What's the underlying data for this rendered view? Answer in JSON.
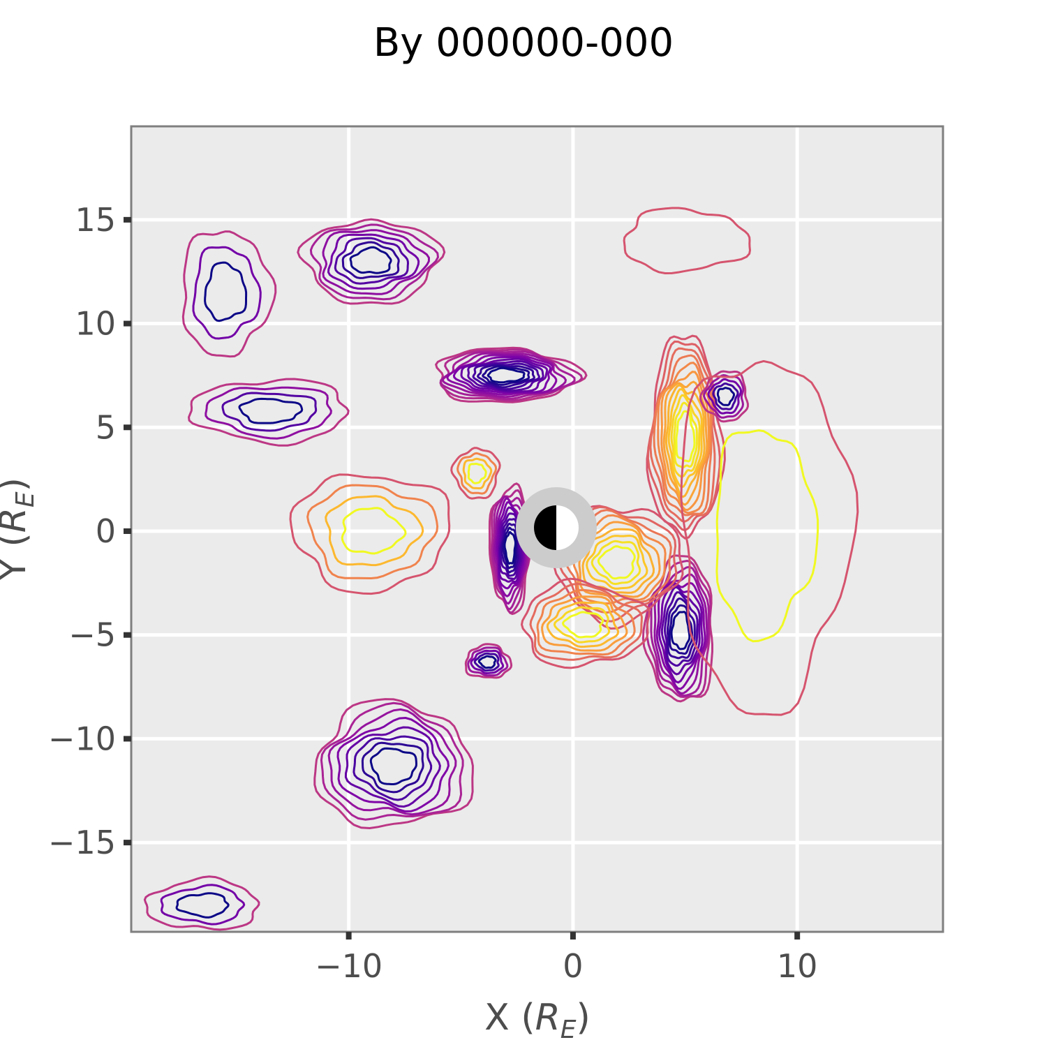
{
  "chart_data": {
    "type": "contour",
    "title": "By 000000-000",
    "xlabel_main": "X (",
    "xlabel_R": "R",
    "xlabel_sub": "E",
    "xlabel_end": ")",
    "ylabel_main": "Y (",
    "ylabel_R": "R",
    "ylabel_sub": "E",
    "ylabel_end": ")",
    "xlim": [
      -19.7,
      16.5
    ],
    "ylim": [
      -19.3,
      19.5
    ],
    "xticks": [
      -10,
      0,
      10
    ],
    "xtick_labels": [
      "−10",
      "0",
      "10"
    ],
    "yticks": [
      -15,
      -10,
      -5,
      0,
      5,
      10,
      15
    ],
    "ytick_labels": [
      "−15",
      "−10",
      "−5",
      "0",
      "5",
      "10",
      "15"
    ],
    "grid": true,
    "colormap": "plasma",
    "colors": {
      "panel_background": "#ebebeb",
      "grid": "#ffffff",
      "frame": "#7f7f7f",
      "tick_text": "#4d4d4d",
      "earth_ring": "#cccccc",
      "earth_night": "#000000",
      "earth_day": "#ffffff"
    },
    "features": [
      {
        "name": "negative-lobe-upper-left",
        "polarity": "min",
        "center": [
          -9.0,
          13.0
        ],
        "radii": [
          3.0,
          2.0
        ],
        "levels": 7
      },
      {
        "name": "negative-lobe-upper-far-left",
        "polarity": "min",
        "center": [
          -15.5,
          11.5
        ],
        "radii": [
          2.0,
          3.0
        ],
        "levels": 3
      },
      {
        "name": "negative-lobe-lower-left",
        "polarity": "min",
        "center": [
          -8.0,
          -11.3
        ],
        "radii": [
          3.5,
          3.0
        ],
        "levels": 8
      },
      {
        "name": "negative-lobe-lower-far-left",
        "polarity": "min",
        "center": [
          -16.5,
          -18.0
        ],
        "radii": [
          2.5,
          1.2
        ],
        "levels": 3
      },
      {
        "name": "negative-band-left-mid",
        "polarity": "min",
        "center": [
          -13.5,
          5.8
        ],
        "radii": [
          3.5,
          1.5
        ],
        "levels": 4
      },
      {
        "name": "positive-plateau-left",
        "polarity": "max",
        "center": [
          -9.0,
          0.0
        ],
        "radii": [
          3.5,
          2.8
        ],
        "levels": 4
      },
      {
        "name": "negative-arc-upper",
        "polarity": "min",
        "center": [
          -3.0,
          7.5
        ],
        "radii": [
          3.2,
          1.3
        ],
        "levels": 12
      },
      {
        "name": "positive-band-right",
        "polarity": "max",
        "center": [
          5.0,
          4.5
        ],
        "radii": [
          1.6,
          4.8
        ],
        "levels": 12
      },
      {
        "name": "negative-arc-lower-right",
        "polarity": "min",
        "center": [
          4.8,
          -4.8
        ],
        "radii": [
          1.5,
          3.5
        ],
        "levels": 11
      },
      {
        "name": "negative-arc-inner-left",
        "polarity": "min",
        "center": [
          -2.8,
          -0.8
        ],
        "radii": [
          0.9,
          3.0
        ],
        "levels": 12
      },
      {
        "name": "positive-ring-inner",
        "polarity": "max",
        "center": [
          2.0,
          -1.5
        ],
        "radii": [
          2.8,
          2.8
        ],
        "levels": 9
      },
      {
        "name": "positive-blob-lower",
        "polarity": "max",
        "center": [
          0.5,
          -4.5
        ],
        "radii": [
          2.8,
          2.0
        ],
        "levels": 7
      },
      {
        "name": "negative-small-lower-left",
        "polarity": "min",
        "center": [
          -3.8,
          -6.3
        ],
        "radii": [
          1.0,
          0.8
        ],
        "levels": 5
      },
      {
        "name": "negative-small-upper-right",
        "polarity": "min",
        "center": [
          6.8,
          6.5
        ],
        "radii": [
          1.0,
          1.2
        ],
        "levels": 5
      },
      {
        "name": "positive-small-left",
        "polarity": "max",
        "center": [
          -4.3,
          2.8
        ],
        "radii": [
          1.0,
          1.2
        ],
        "levels": 4
      },
      {
        "name": "outer-envelope-right",
        "polarity": "max",
        "center": [
          8.5,
          0.0
        ],
        "radii": [
          3.8,
          8.5
        ],
        "levels": 2
      },
      {
        "name": "outer-envelope-top-right",
        "polarity": "max",
        "center": [
          5.0,
          14.0
        ],
        "radii": [
          2.8,
          1.5
        ],
        "levels": 1
      }
    ]
  }
}
